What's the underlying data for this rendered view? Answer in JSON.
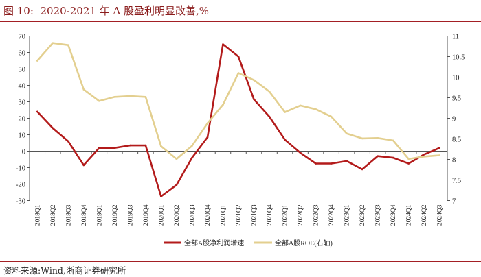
{
  "header": {
    "figure_label": "图 10:",
    "title": "2020-2021 年 A 股盈利明显改善,%"
  },
  "footer": {
    "source": "资料来源:Wind,浙商证券研究所"
  },
  "chart_data": {
    "type": "line",
    "title": "",
    "categories": [
      "2018Q1",
      "2018Q2",
      "2018Q3",
      "2018Q4",
      "2019Q1",
      "2019Q2",
      "2019Q3",
      "2019Q4",
      "2020Q1",
      "2020Q2",
      "2020Q3",
      "2020Q4",
      "2021Q1",
      "2021Q2",
      "2021Q3",
      "2021Q4",
      "2022Q1",
      "2022Q2",
      "2022Q3",
      "2022Q4",
      "2023Q1",
      "2023Q2",
      "2023Q3",
      "2023Q4",
      "2024Q1",
      "2024Q2",
      "2024Q3"
    ],
    "y_left": {
      "min": -30,
      "max": 70,
      "ticks": [
        -30,
        -20,
        -10,
        0,
        10,
        20,
        30,
        40,
        50,
        60,
        70
      ]
    },
    "y_right": {
      "min": 7,
      "max": 11,
      "ticks": [
        7,
        7.5,
        8,
        8.5,
        9,
        9.5,
        10,
        10.5,
        11
      ],
      "tick_labels": [
        "7",
        "7.5",
        "8",
        "8.5",
        "9",
        "9.5",
        "10",
        "10.5",
        "11"
      ]
    },
    "grid": false,
    "legend_position": "bottom",
    "series": [
      {
        "name": "全部A股净利润增速",
        "axis": "left",
        "color": "#b31b1b",
        "values": [
          24,
          14,
          6,
          -8.5,
          2,
          2,
          3.5,
          3.5,
          -27.5,
          -20.5,
          -4,
          8.5,
          65,
          57.5,
          31.5,
          21,
          7,
          -1,
          -7.5,
          -7.5,
          -6,
          -11,
          -3,
          -4,
          -7.5,
          -2,
          2
        ]
      },
      {
        "name": "全部A股ROE(右轴)",
        "axis": "right",
        "color": "#e3cf8f",
        "values": [
          10.4,
          10.83,
          10.78,
          9.7,
          9.42,
          9.52,
          9.54,
          9.52,
          8.32,
          8.01,
          8.33,
          8.88,
          9.33,
          10.1,
          9.93,
          9.65,
          9.15,
          9.31,
          9.22,
          9.04,
          8.63,
          8.51,
          8.52,
          8.46,
          8.01,
          8.07,
          8.1
        ]
      }
    ]
  }
}
